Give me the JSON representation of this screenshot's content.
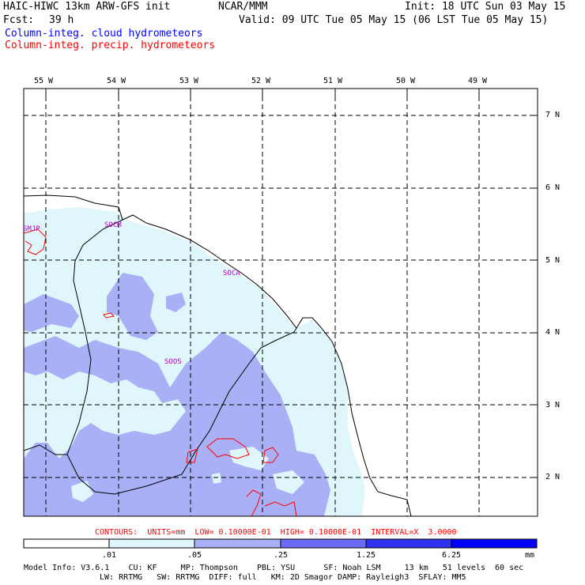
{
  "header": {
    "model_title": "HAIC-HIWC 13km ARW-GFS init",
    "center": "NCAR/MMM",
    "init": "Init: 18 UTC Sun 03 May 15",
    "fcst_label": "Fcst:",
    "fcst_value": "39 h",
    "valid": "Valid: 09 UTC Tue 05 May 15 (06 LST Tue 05 May 15)",
    "field1": "Column-integ. cloud hydrometeors",
    "field2": "Column-integ. precip. hydrometeors"
  },
  "colors": {
    "field1": "#0000ff",
    "field2": "#ff0000",
    "cloud_light": "#dff6fb",
    "cloud_medium": "#aab0f5",
    "cloud_dark": "#6b6bf5",
    "cloud_darkest": "#0000ff",
    "station": "#c000c0"
  },
  "map": {
    "lon_labels": [
      "55 W",
      "54 W",
      "53 W",
      "52 W",
      "51 W",
      "50 W",
      "49 W"
    ],
    "lat_labels": [
      "7 N",
      "6 N",
      "5 N",
      "4 N",
      "3 N",
      "2 N"
    ],
    "stations": [
      "SMJP",
      "SOCM",
      "SOCA",
      "SOOS"
    ]
  },
  "contour_info": "CONTOURS:  UNITS=mm  LOW= 0.10000E-01  HIGH= 0.10000E-01  INTERVAL=X  3.0000",
  "colorbar": {
    "ticks": [
      ".01",
      ".05",
      ".25",
      "1.25",
      "6.25"
    ],
    "unit": "mm"
  },
  "model_info": {
    "line1": "Model Info: V3.6.1    CU: KF     MP: Thompson    PBL: YSU      SF: Noah LSM     13 km   51 levels  60 sec",
    "line2": "LW: RRTMG   SW: RRTMG  DIFF: full   KM: 2D Smagor DAMP: Rayleigh3  SFLAY: MM5"
  }
}
